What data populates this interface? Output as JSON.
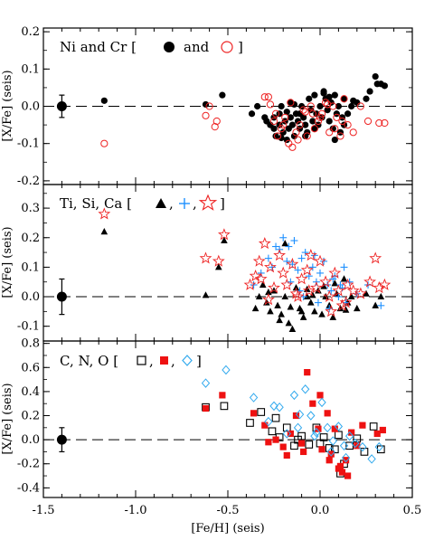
{
  "chart_data": [
    {
      "type": "scatter",
      "ylim": [
        -0.21,
        0.21
      ],
      "ylabel": "[X/Fe] (seis)",
      "yticks": [
        -0.2,
        -0.1,
        0.0,
        0.1,
        0.2
      ],
      "ytick_labels": [
        "-0.2",
        "-0.1",
        "0.0",
        "0.1",
        "0.2"
      ],
      "xlim": [
        -1.5,
        0.5
      ],
      "reference_line": 0.0,
      "legend": {
        "prefix": "Ni and Cr [",
        "joiner": "and",
        "suffix": "]"
      },
      "error_point": {
        "x": -1.4,
        "y": 0.0,
        "yerr": 0.03
      },
      "series": [
        {
          "name": "Ni",
          "marker": "filled-circle",
          "color": "#000000",
          "x": [
            -1.17,
            -0.62,
            -0.53,
            -0.37,
            -0.34,
            -0.3,
            -0.29,
            -0.27,
            -0.25,
            -0.24,
            -0.22,
            -0.22,
            -0.21,
            -0.2,
            -0.19,
            -0.18,
            -0.17,
            -0.16,
            -0.16,
            -0.15,
            -0.14,
            -0.13,
            -0.12,
            -0.11,
            -0.1,
            -0.09,
            -0.08,
            -0.07,
            -0.06,
            -0.05,
            -0.04,
            -0.03,
            -0.02,
            -0.01,
            0.0,
            0.01,
            0.02,
            0.03,
            0.04,
            0.05,
            0.06,
            0.07,
            0.08,
            0.09,
            0.1,
            0.11,
            0.12,
            0.13,
            0.15,
            0.17,
            0.2,
            0.25,
            0.27,
            0.3,
            0.31,
            0.33,
            0.35,
            -0.25,
            -0.18,
            -0.14,
            -0.08,
            -0.03,
            0.02,
            0.08,
            0.13,
            0.18,
            -0.21,
            -0.11,
            0.05
          ],
          "y": [
            0.015,
            0.005,
            0.03,
            -0.02,
            0.0,
            -0.03,
            -0.04,
            -0.05,
            -0.06,
            -0.08,
            -0.05,
            -0.02,
            0.0,
            -0.07,
            -0.04,
            -0.09,
            -0.06,
            -0.03,
            0.01,
            -0.05,
            -0.08,
            -0.02,
            -0.04,
            -0.06,
            0.0,
            -0.03,
            -0.05,
            -0.07,
            0.02,
            -0.01,
            -0.04,
            0.03,
            -0.02,
            -0.05,
            0.0,
            -0.03,
            0.04,
            0.02,
            -0.01,
            -0.04,
            0.01,
            -0.06,
            0.03,
            -0.02,
            0.0,
            -0.07,
            -0.03,
            0.02,
            -0.02,
            0.0,
            0.01,
            0.02,
            0.04,
            0.08,
            0.06,
            0.06,
            0.055,
            -0.03,
            -0.015,
            0.005,
            -0.08,
            -0.06,
            0.035,
            -0.09,
            -0.05,
            0.015,
            -0.085,
            -0.02,
            0.025
          ]
        },
        {
          "name": "Cr",
          "marker": "open-circle",
          "color": "#ee2222",
          "x": [
            -1.17,
            -0.62,
            -0.6,
            -0.57,
            -0.56,
            -0.3,
            -0.28,
            -0.27,
            -0.25,
            -0.23,
            -0.21,
            -0.19,
            -0.17,
            -0.15,
            -0.13,
            -0.11,
            -0.09,
            -0.07,
            -0.05,
            -0.03,
            -0.01,
            0.01,
            0.03,
            0.05,
            0.07,
            0.09,
            0.11,
            0.13,
            0.15,
            0.18,
            0.22,
            0.26,
            0.32,
            0.35,
            -0.24,
            -0.16,
            -0.08,
            0.0,
            0.08,
            -0.2,
            -0.12,
            -0.04,
            0.04,
            0.12
          ],
          "y": [
            -0.1,
            -0.025,
            0.0,
            -0.055,
            -0.04,
            0.025,
            0.025,
            0.005,
            -0.04,
            -0.08,
            -0.06,
            -0.03,
            -0.1,
            -0.11,
            -0.07,
            -0.05,
            -0.01,
            -0.08,
            0.0,
            -0.06,
            -0.04,
            -0.02,
            0.01,
            -0.07,
            0.0,
            -0.03,
            -0.08,
            0.02,
            -0.05,
            -0.07,
            0.0,
            -0.04,
            -0.045,
            -0.045,
            -0.02,
            0.01,
            -0.015,
            -0.03,
            -0.06,
            -0.05,
            -0.09,
            -0.02,
            0.005,
            -0.04
          ]
        }
      ]
    },
    {
      "type": "scatter",
      "ylim": [
        -0.15,
        0.38
      ],
      "ylabel": "[X/Fe] (seis)",
      "yticks": [
        -0.1,
        0.0,
        0.1,
        0.2,
        0.3
      ],
      "ytick_labels": [
        "-0.1",
        "0.0",
        "0.1",
        "0.2",
        "0.3"
      ],
      "xlim": [
        -1.5,
        0.5
      ],
      "reference_line": 0.0,
      "legend": {
        "prefix": "Ti, Si, Ca [",
        "sep": ",",
        "suffix": "]"
      },
      "error_point": {
        "x": -1.4,
        "y": 0.0,
        "yerr": 0.06
      },
      "series": [
        {
          "name": "Ti",
          "marker": "filled-triangle",
          "color": "#000000",
          "x": [
            -1.17,
            -0.62,
            -0.55,
            -0.52,
            -0.35,
            -0.33,
            -0.31,
            -0.29,
            -0.27,
            -0.25,
            -0.23,
            -0.21,
            -0.19,
            -0.17,
            -0.15,
            -0.13,
            -0.11,
            -0.09,
            -0.07,
            -0.05,
            -0.03,
            -0.01,
            0.01,
            0.03,
            0.05,
            0.07,
            0.09,
            0.11,
            0.13,
            0.15,
            0.17,
            0.2,
            0.25,
            0.3,
            0.33,
            -0.28,
            -0.22,
            -0.16,
            -0.1,
            -0.04,
            0.02,
            0.08,
            0.14,
            -0.19,
            -0.07
          ],
          "y": [
            0.22,
            0.005,
            0.1,
            0.19,
            -0.04,
            0.0,
            0.04,
            -0.02,
            -0.05,
            0.02,
            -0.03,
            -0.06,
            0.0,
            -0.09,
            -0.11,
            0.03,
            -0.04,
            -0.07,
            0.0,
            -0.02,
            -0.05,
            0.02,
            -0.06,
            0.0,
            -0.03,
            -0.07,
            0.01,
            -0.04,
            0.06,
            -0.02,
            0.0,
            -0.04,
            0.01,
            -0.03,
            0.0,
            0.015,
            -0.08,
            -0.035,
            -0.05,
            0.005,
            0.035,
            0.045,
            -0.045,
            0.18,
            0.025
          ]
        },
        {
          "name": "Si",
          "marker": "plus",
          "color": "#1e90ff",
          "x": [
            -0.36,
            -0.32,
            -0.28,
            -0.24,
            -0.2,
            -0.18,
            -0.16,
            -0.14,
            -0.12,
            -0.1,
            -0.08,
            -0.06,
            -0.04,
            -0.02,
            0.0,
            0.02,
            0.04,
            0.06,
            0.08,
            0.1,
            0.12,
            0.14,
            0.16,
            0.2,
            0.26,
            0.33,
            -0.22,
            -0.15,
            -0.09,
            -0.01,
            0.07,
            0.13,
            -0.26,
            -0.17,
            -0.11,
            -0.03,
            0.05,
            0.11
          ],
          "y": [
            0.04,
            0.08,
            0.13,
            0.17,
            0.2,
            0.12,
            0.05,
            0.19,
            0.09,
            0.13,
            0.15,
            0.07,
            0.1,
            0.05,
            0.08,
            0.12,
            0.04,
            0.02,
            0.07,
            0.0,
            0.03,
            -0.02,
            0.05,
            0.01,
            0.04,
            -0.03,
            0.16,
            0.11,
            0.0,
            -0.02,
            0.06,
            0.1,
            0.1,
            0.17,
            0.02,
            0.14,
            -0.04,
            0.04
          ]
        },
        {
          "name": "Ca",
          "marker": "open-star",
          "color": "#ee2222",
          "x": [
            -1.17,
            -0.62,
            -0.55,
            -0.52,
            -0.38,
            -0.35,
            -0.32,
            -0.3,
            -0.27,
            -0.25,
            -0.22,
            -0.2,
            -0.18,
            -0.15,
            -0.12,
            -0.1,
            -0.07,
            -0.05,
            -0.02,
            0.0,
            0.03,
            0.05,
            0.08,
            0.1,
            0.12,
            0.15,
            0.18,
            0.22,
            0.27,
            0.3,
            0.32,
            0.35,
            -0.33,
            -0.28,
            -0.13,
            -0.06,
            0.06,
            0.14
          ],
          "y": [
            0.28,
            0.13,
            0.12,
            0.21,
            0.04,
            0.07,
            0.06,
            0.18,
            0.1,
            0.03,
            0.14,
            0.08,
            0.04,
            0.11,
            0.0,
            0.06,
            0.09,
            0.14,
            0.03,
            0.12,
            0.05,
            0.0,
            0.08,
            0.02,
            -0.03,
            0.04,
            0.02,
            0.01,
            0.05,
            0.13,
            0.03,
            0.04,
            0.12,
            -0.01,
            0.01,
            0.02,
            -0.05,
            -0.02
          ]
        }
      ]
    },
    {
      "type": "scatter",
      "ylim": [
        -0.48,
        0.82
      ],
      "ylabel": "[X/Fe] (seis)",
      "yticks": [
        -0.4,
        -0.2,
        0.0,
        0.2,
        0.4,
        0.6,
        0.8
      ],
      "ytick_labels": [
        "-0.4",
        "-0.2",
        "0.0",
        "0.2",
        "0.4",
        "0.6",
        "0.8"
      ],
      "xlim": [
        -1.5,
        0.5
      ],
      "xticks": [
        -1.5,
        -1.0,
        -0.5,
        0.0,
        0.5
      ],
      "xtick_labels": [
        "-1.5",
        "-1.0",
        "-0.5",
        "0.0",
        "0.5"
      ],
      "xlabel": "[Fe/H] (seis)",
      "reference_line": 0.0,
      "legend": {
        "prefix": "C, N, O [",
        "sep": ",",
        "suffix": "]"
      },
      "error_point": {
        "x": -1.4,
        "y": 0.0,
        "yerr": 0.1
      },
      "series": [
        {
          "name": "C",
          "marker": "open-square",
          "color": "#000000",
          "x": [
            -0.62,
            -0.52,
            -0.38,
            -0.32,
            -0.26,
            -0.22,
            -0.18,
            -0.14,
            -0.1,
            -0.06,
            -0.02,
            0.02,
            0.05,
            0.08,
            0.1,
            0.13,
            0.16,
            0.2,
            0.24,
            0.29,
            0.33,
            -0.24,
            -0.12,
            0.0,
            0.11
          ],
          "y": [
            0.27,
            0.28,
            0.14,
            0.23,
            0.07,
            0.02,
            0.1,
            -0.05,
            0.03,
            -0.04,
            0.1,
            0.02,
            -0.07,
            -0.08,
            0.04,
            -0.2,
            -0.05,
            0.01,
            -0.1,
            0.11,
            -0.08,
            0.18,
            0.0,
            -0.03,
            -0.28
          ]
        },
        {
          "name": "N",
          "marker": "filled-square",
          "color": "#ee1111",
          "x": [
            -0.62,
            -0.53,
            -0.36,
            -0.3,
            -0.24,
            -0.2,
            -0.16,
            -0.13,
            -0.1,
            -0.07,
            -0.04,
            -0.01,
            0.01,
            0.04,
            0.06,
            0.08,
            0.1,
            0.12,
            0.14,
            0.17,
            0.2,
            0.23,
            0.31,
            0.34,
            -0.28,
            -0.18,
            -0.09,
            0.0,
            0.05,
            0.11,
            0.15
          ],
          "y": [
            0.26,
            0.37,
            0.22,
            0.12,
            0.0,
            -0.06,
            0.05,
            0.2,
            -0.03,
            0.56,
            0.3,
            0.09,
            -0.08,
            0.22,
            -0.12,
            0.09,
            -0.24,
            -0.27,
            -0.17,
            0.06,
            -0.05,
            0.12,
            0.05,
            0.08,
            -0.02,
            -0.13,
            -0.1,
            0.37,
            -0.17,
            -0.22,
            -0.3
          ]
        },
        {
          "name": "O",
          "marker": "open-diamond",
          "color": "#33aaee",
          "x": [
            -0.62,
            -0.51,
            -0.36,
            -0.28,
            -0.22,
            -0.18,
            -0.14,
            -0.11,
            -0.08,
            -0.05,
            -0.02,
            0.01,
            0.04,
            0.07,
            0.1,
            0.13,
            0.16,
            0.19,
            0.23,
            0.28,
            0.32,
            -0.25,
            -0.12,
            -0.03,
            0.06,
            0.14
          ],
          "y": [
            0.47,
            0.58,
            0.35,
            0.15,
            0.27,
            0.05,
            0.37,
            0.21,
            0.42,
            0.2,
            0.06,
            0.31,
            0.1,
            -0.01,
            0.11,
            -0.05,
            0.03,
            -0.03,
            -0.06,
            -0.16,
            -0.06,
            0.28,
            0.1,
            0.03,
            -0.1,
            -0.15
          ]
        }
      ]
    }
  ]
}
